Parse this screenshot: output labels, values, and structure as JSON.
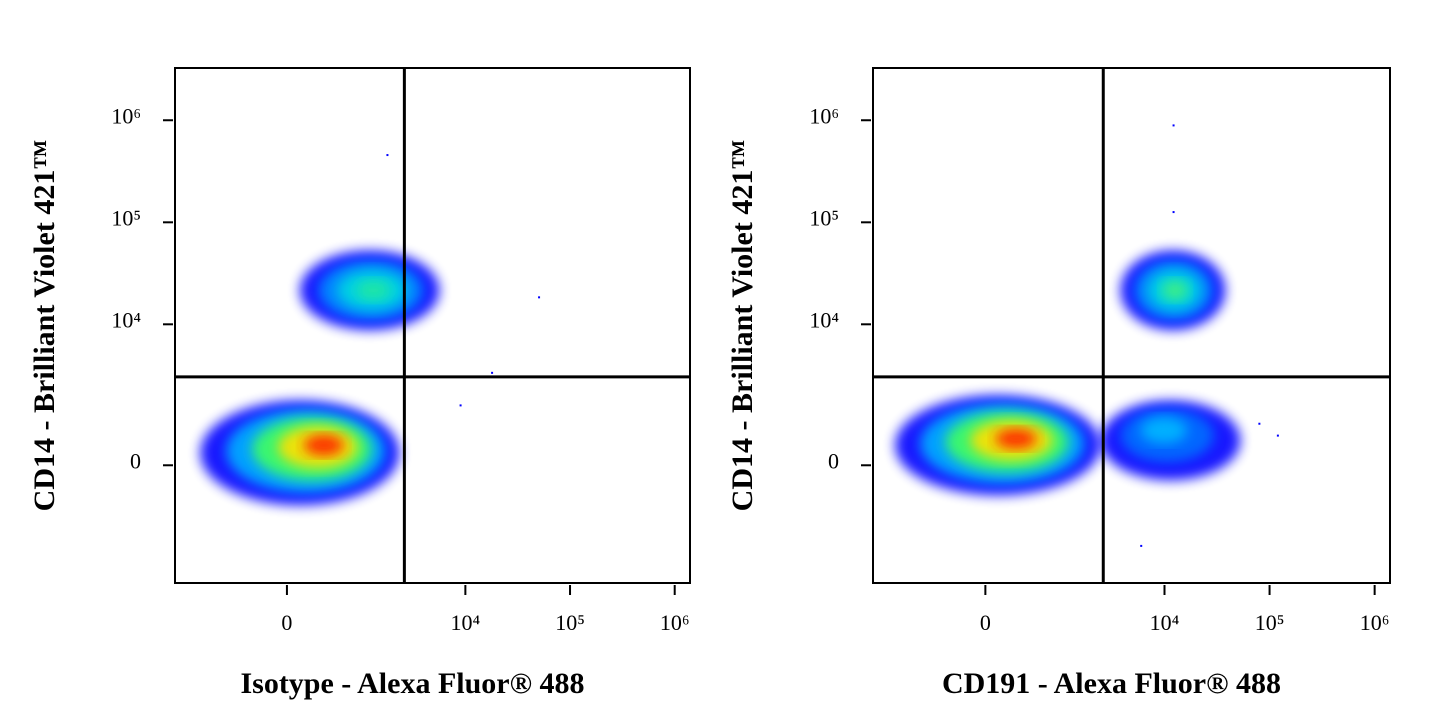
{
  "chart_data": [
    {
      "type": "scatter",
      "x_label": "Isotype - Alexa Fluor® 488",
      "y_label": "CD14 - Brilliant Violet 421™",
      "x_scale": "biexponential",
      "y_scale": "biexponential",
      "xlim": [
        -2300,
        1400000
      ],
      "ylim": [
        -5900,
        3250000
      ],
      "xticks": [
        0,
        {
          "value": 10000,
          "label": "10⁴"
        },
        {
          "value": 100000,
          "label": "10⁵"
        },
        {
          "value": 1000000,
          "label": "10⁶"
        }
      ],
      "yticks": [
        0,
        {
          "value": 10000,
          "label": "10⁴"
        },
        {
          "value": 100000,
          "label": "10⁵"
        },
        {
          "value": 1000000,
          "label": "10⁶"
        }
      ],
      "gate": {
        "x": 2600,
        "y": 3000
      },
      "populations": [
        {
          "x": [
            114,
            1330,
            5650
          ],
          "y": [
            8750,
            21600,
            53000
          ],
          "colors": [
            "#0000ff",
            "#0090ff",
            "#00d8e0",
            "#20e8a0"
          ]
        },
        {
          "x": [
            -1300,
            430,
            2330
          ],
          "y": [
            -860,
            430,
            1700
          ],
          "colors": [
            "#0000ff",
            "#00b0ff",
            "#40ff60",
            "#ffe000",
            "#ff2000"
          ]
        }
      ],
      "points": {
        "x": [
          1780,
          50600,
          9000,
          18000
        ],
        "y": [
          456000,
          18400,
          1500,
          3300
        ]
      },
      "color": "#0000ff"
    },
    {
      "type": "scatter",
      "x_label": "CD191 - Alexa Fluor® 488",
      "y_label": "CD14 - Brilliant Violet 421™",
      "x_scale": "biexponential",
      "y_scale": "biexponential",
      "xlim": [
        -2300,
        1400000
      ],
      "ylim": [
        -5900,
        3250000
      ],
      "xticks": [
        0,
        {
          "value": 10000,
          "label": "10⁴"
        },
        {
          "value": 100000,
          "label": "10⁵"
        },
        {
          "value": 1000000,
          "label": "10⁶"
        }
      ],
      "yticks": [
        0,
        {
          "value": 10000,
          "label": "10⁴"
        },
        {
          "value": 100000,
          "label": "10⁵"
        },
        {
          "value": 1000000,
          "label": "10⁶"
        }
      ],
      "gate": {
        "x": 2600,
        "y": 3000
      },
      "populations": [
        {
          "x": [
            3800,
            12800,
            38000
          ],
          "y": [
            8750,
            21600,
            53000
          ],
          "colors": [
            "#0000ff",
            "#0090ff",
            "#00d8e0",
            "#40f080"
          ]
        },
        {
          "x": [
            2450,
            9170,
            52900
          ],
          "y": [
            -290,
            860,
            1700
          ],
          "colors": [
            "#0000ff",
            "#0070ff",
            "#00b8ff"
          ]
        },
        {
          "x": [
            -1400,
            335,
            2450
          ],
          "y": [
            -610,
            565,
            1940
          ],
          "colors": [
            "#0000ff",
            "#00b0ff",
            "#40ff60",
            "#ffe000",
            "#ff2000"
          ]
        }
      ],
      "points": {
        "x": [
          12200,
          12200,
          120000,
          80000,
          6000
        ],
        "y": [
          890000,
          126000,
          600,
          900,
          -2500
        ]
      },
      "color": "#0000ff"
    }
  ]
}
